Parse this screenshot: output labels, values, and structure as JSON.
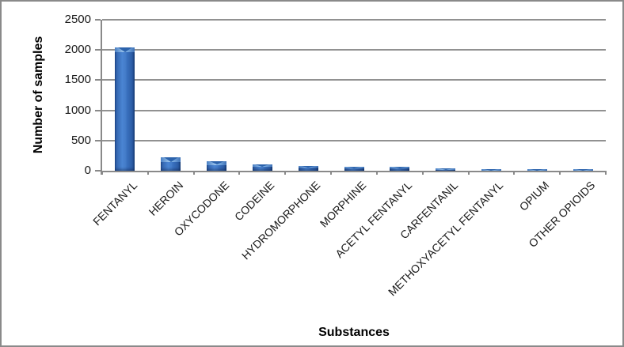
{
  "chart_data": {
    "type": "bar",
    "title": "",
    "xlabel": "Substances",
    "ylabel": "Number of samples",
    "categories": [
      "FENTANYL",
      "HEROIN",
      "OXYCODONE",
      "CODEINE",
      "HYDROMORPHONE",
      "MORPHINE",
      "ACETYL FENTANYL",
      "CARFENTANIL",
      "METHOXYACETYL FENTANYL",
      "OPIUM",
      "OTHER OPIOIDS"
    ],
    "values": [
      2040,
      220,
      160,
      105,
      80,
      70,
      60,
      40,
      20,
      20,
      25
    ],
    "ylim": [
      0,
      2500
    ],
    "yticks": [
      0,
      500,
      1000,
      1500,
      2000,
      2500
    ],
    "grid": "horizontal",
    "legend": "none",
    "colors": {
      "bar_main": "#3a72c0",
      "bar_dark_edge": "#1d4c90",
      "bar_light_bevel": "#9ec7ef",
      "grid_line": "#919191",
      "axis_line": "#898989",
      "frame_border": "#8a8a8a",
      "tick_text": "#1a1a1a",
      "title_text": "#000000",
      "background": "#ffffff"
    }
  }
}
